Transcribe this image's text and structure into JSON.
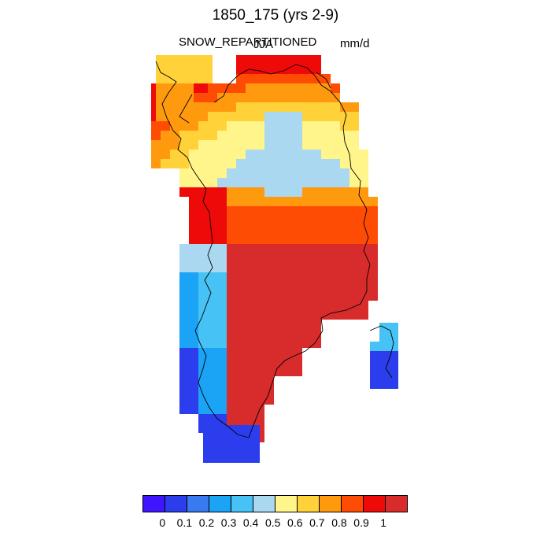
{
  "title": "1850_175 (yrs 2-9)",
  "variable": "SNOW_REPARTITIONED",
  "season": "JJA",
  "units": "mm/d",
  "legend": {
    "colors": [
      "#3f14ff",
      "#2b3ded",
      "#3a7af0",
      "#1ba3f5",
      "#46c3f4",
      "#a9d8f0",
      "#fff58a",
      "#ffd23a",
      "#ff9a0f",
      "#ff4c05",
      "#ef0a0a",
      "#d82c2c"
    ],
    "tick_labels": [
      "0",
      "0.1",
      "0.2",
      "0.3",
      "0.4",
      "0.5",
      "0.6",
      "0.7",
      "0.8",
      "0.9",
      "1"
    ]
  }
}
